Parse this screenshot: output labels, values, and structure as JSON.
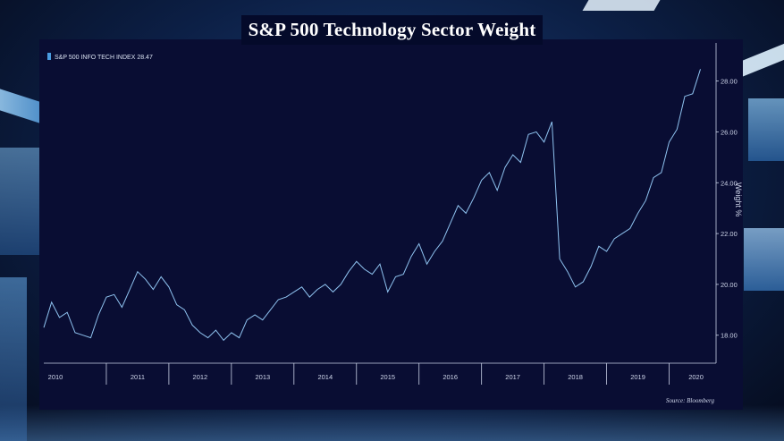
{
  "chart_data": {
    "type": "line",
    "title": "S&P 500 Technology Sector Weight",
    "legend": "S&P 500 INFO TECH INDEX 28.47",
    "ylabel": "Weight %",
    "source": "Source: Bloomberg",
    "ylim": [
      16.9,
      29.5
    ],
    "y_ticks": [
      18.0,
      20.0,
      22.0,
      24.0,
      26.0,
      28.0
    ],
    "y_tick_labels": [
      "18.00",
      "20.00",
      "22.00",
      "24.00",
      "26.00",
      "28.00"
    ],
    "x_labels": [
      "2010",
      "2011",
      "2012",
      "2013",
      "2014",
      "2015",
      "2016",
      "2017",
      "2018",
      "2019",
      "2020"
    ],
    "grid": false,
    "legend_position": "top-left",
    "line_color": "#8fc3f0",
    "series": [
      {
        "name": "S&P 500 INFO TECH INDEX",
        "x": [
          2010.0,
          2010.125,
          2010.25,
          2010.375,
          2010.5,
          2010.625,
          2010.75,
          2010.875,
          2011.0,
          2011.125,
          2011.25,
          2011.375,
          2011.5,
          2011.625,
          2011.75,
          2011.875,
          2012.0,
          2012.125,
          2012.25,
          2012.375,
          2012.5,
          2012.625,
          2012.75,
          2012.875,
          2013.0,
          2013.125,
          2013.25,
          2013.375,
          2013.5,
          2013.625,
          2013.75,
          2013.875,
          2014.0,
          2014.125,
          2014.25,
          2014.375,
          2014.5,
          2014.625,
          2014.75,
          2014.875,
          2015.0,
          2015.125,
          2015.25,
          2015.375,
          2015.5,
          2015.625,
          2015.75,
          2015.875,
          2016.0,
          2016.125,
          2016.25,
          2016.375,
          2016.5,
          2016.625,
          2016.75,
          2016.875,
          2017.0,
          2017.125,
          2017.25,
          2017.375,
          2017.5,
          2017.625,
          2017.75,
          2017.875,
          2018.0,
          2018.125,
          2018.25,
          2018.375,
          2018.5,
          2018.625,
          2018.75,
          2018.875,
          2019.0,
          2019.125,
          2019.25,
          2019.375,
          2019.5,
          2019.625,
          2019.75,
          2019.875,
          2020.0,
          2020.125,
          2020.25,
          2020.375,
          2020.5
        ],
        "values": [
          18.3,
          19.3,
          18.7,
          18.9,
          18.1,
          18.0,
          17.9,
          18.8,
          19.5,
          19.6,
          19.1,
          19.8,
          20.5,
          20.2,
          19.8,
          20.3,
          19.9,
          19.2,
          19.0,
          18.4,
          18.1,
          17.9,
          18.2,
          17.8,
          18.1,
          17.9,
          18.6,
          18.8,
          18.6,
          19.0,
          19.4,
          19.5,
          19.7,
          19.9,
          19.5,
          19.8,
          20.0,
          19.7,
          20.0,
          20.5,
          20.9,
          20.6,
          20.4,
          20.8,
          19.7,
          20.3,
          20.4,
          21.1,
          21.6,
          20.8,
          21.3,
          21.7,
          22.4,
          23.1,
          22.8,
          23.4,
          24.1,
          24.4,
          23.7,
          24.6,
          25.1,
          24.8,
          25.9,
          26.0,
          25.6,
          26.4,
          21.0,
          20.5,
          19.9,
          20.1,
          20.7,
          21.5,
          21.3,
          21.8,
          22.0,
          22.2,
          22.8,
          23.3,
          24.2,
          24.4,
          25.6,
          26.1,
          27.4,
          27.5,
          28.47
        ]
      }
    ]
  }
}
